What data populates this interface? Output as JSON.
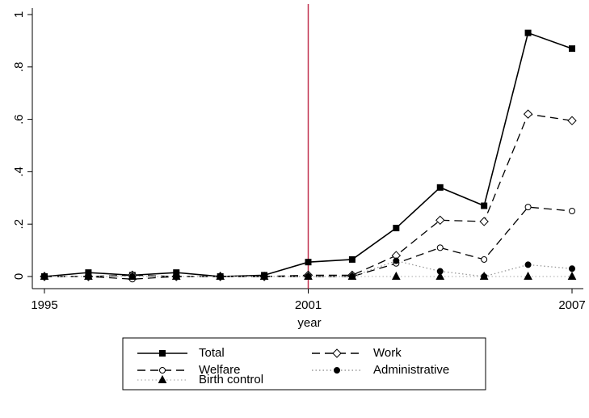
{
  "chart_data": {
    "type": "line",
    "x": [
      1995,
      1996,
      1997,
      1998,
      1999,
      2000,
      2001,
      2002,
      2003,
      2004,
      2005,
      2006,
      2007
    ],
    "xlabel": "year",
    "xlim": [
      1995,
      2007
    ],
    "xticks": [
      1995,
      2001,
      2007
    ],
    "ylim": [
      0,
      1
    ],
    "yticks": [
      0,
      {
        "value": 0.2,
        "label": ".2"
      },
      {
        "value": 0.4,
        "label": ".4"
      },
      {
        "value": 0.6,
        "label": ".6"
      },
      {
        "value": 0.8,
        "label": ".8"
      },
      1
    ],
    "reference_line": {
      "x": 2001,
      "color": "#c0304f"
    },
    "series": [
      {
        "name": "Total",
        "color": "#000000",
        "dash": "solid",
        "marker": "square",
        "values": [
          0,
          0.015,
          0.005,
          0.015,
          0,
          0.005,
          0.055,
          0.065,
          0.185,
          0.34,
          0.27,
          0.93,
          0.87
        ]
      },
      {
        "name": "Work",
        "color": "#000000",
        "dash": "dashed",
        "marker": "diamond-open",
        "values": [
          0,
          0,
          0.005,
          0,
          0,
          0,
          0.005,
          0.005,
          0.08,
          0.215,
          0.21,
          0.62,
          0.595
        ]
      },
      {
        "name": "Welfare",
        "color": "#000000",
        "dash": "dashed",
        "marker": "circle-open",
        "values": [
          0,
          0,
          -0.01,
          0,
          0,
          0,
          0,
          0,
          0.05,
          0.11,
          0.065,
          0.265,
          0.25
        ]
      },
      {
        "name": "Administrative",
        "color": "#999999",
        "dash": "dotted",
        "marker": "circle",
        "values": [
          0,
          0,
          0,
          0,
          0,
          0,
          0,
          0,
          0.06,
          0.02,
          0,
          0.045,
          0.03
        ]
      },
      {
        "name": "Birth control",
        "color": "#bbbbbb",
        "dash": "dotted",
        "marker": "triangle",
        "values": [
          0,
          0,
          0,
          0,
          0,
          0,
          0,
          0,
          0,
          0,
          0,
          0,
          0
        ]
      }
    ]
  }
}
